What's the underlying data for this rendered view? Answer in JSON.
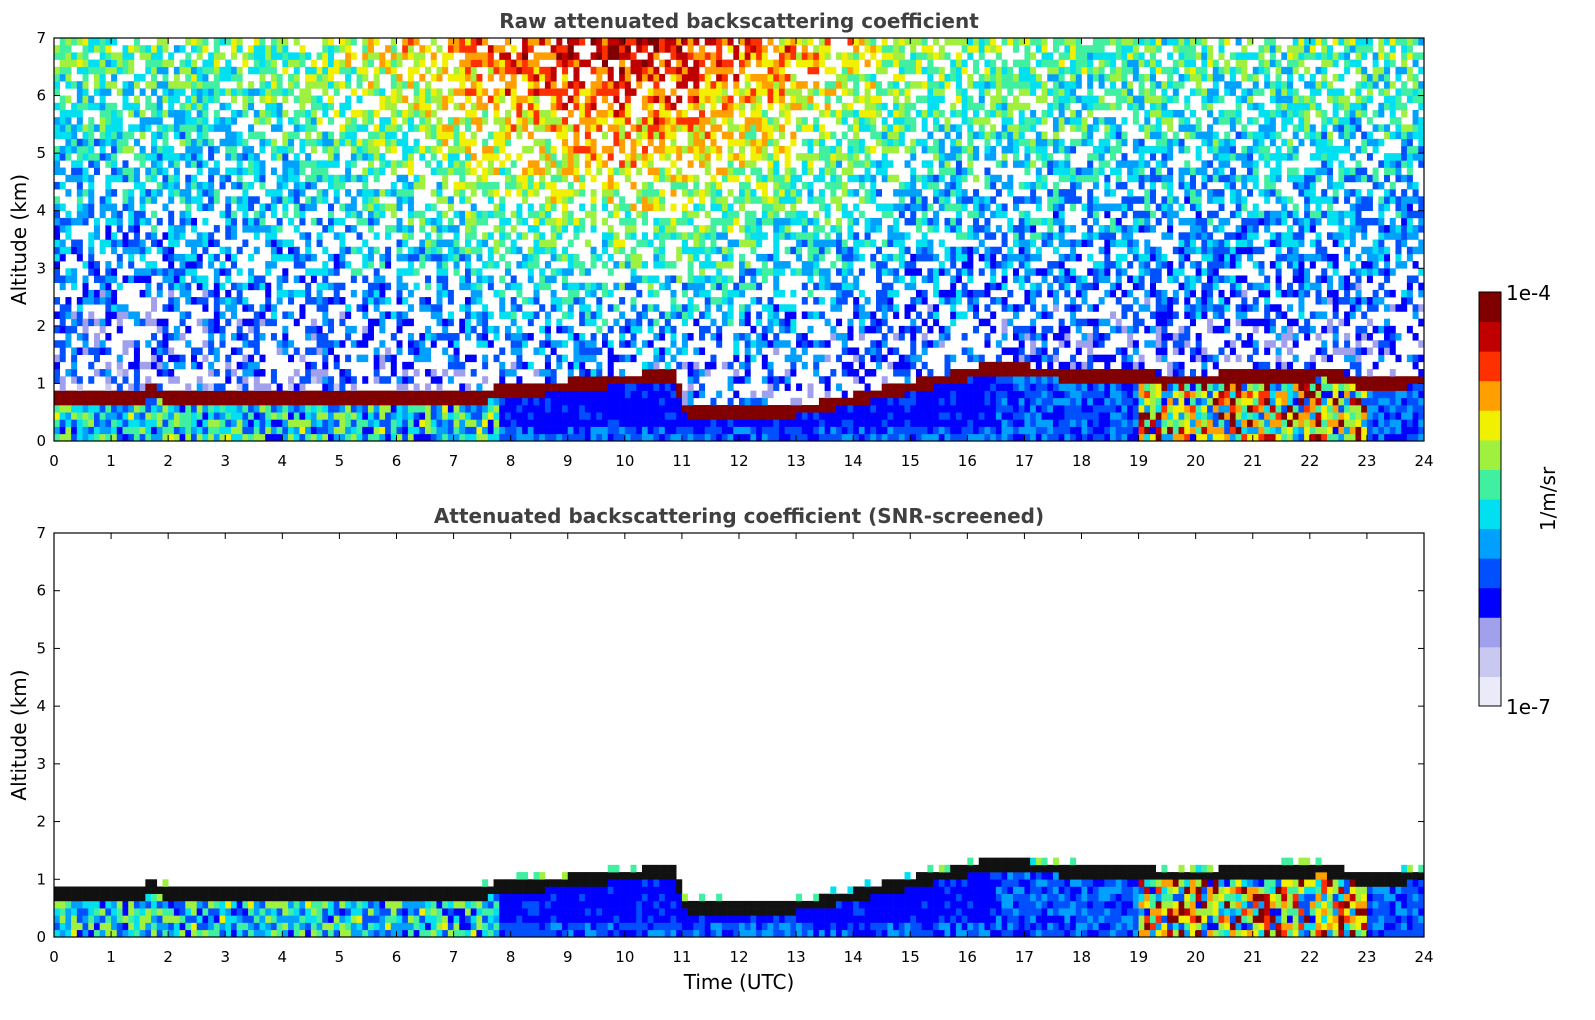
{
  "chart_data": [
    {
      "type": "heatmap",
      "title": "Raw attenuated backscattering coefficient",
      "xlabel": "",
      "ylabel": "Altitude (km)",
      "xlim": [
        0,
        24
      ],
      "ylim": [
        0,
        7
      ],
      "xticks": [
        "0",
        "1",
        "2",
        "3",
        "4",
        "5",
        "6",
        "7",
        "8",
        "9",
        "10",
        "11",
        "12",
        "13",
        "14",
        "15",
        "16",
        "17",
        "18",
        "19",
        "20",
        "21",
        "22",
        "23",
        "24"
      ],
      "yticks": [
        "0",
        "1",
        "2",
        "3",
        "4",
        "5",
        "6",
        "7"
      ],
      "cloud_base_km": [
        {
          "t": 0,
          "z": 0.7
        },
        {
          "t": 1.5,
          "z": 0.72
        },
        {
          "t": 1.7,
          "z": 0.85
        },
        {
          "t": 2,
          "z": 0.72
        },
        {
          "t": 7.5,
          "z": 0.72
        },
        {
          "t": 7.8,
          "z": 0.85
        },
        {
          "t": 8.5,
          "z": 0.88
        },
        {
          "t": 9.5,
          "z": 1.0
        },
        {
          "t": 10.9,
          "z": 1.12
        },
        {
          "t": 11.0,
          "z": 0.52
        },
        {
          "t": 12.5,
          "z": 0.45
        },
        {
          "t": 13.3,
          "z": 0.55
        },
        {
          "t": 16.5,
          "z": 1.25
        },
        {
          "t": 18,
          "z": 1.1
        },
        {
          "t": 20,
          "z": 1.05
        },
        {
          "t": 22.3,
          "z": 1.15
        },
        {
          "t": 23,
          "z": 0.95
        },
        {
          "t": 24,
          "z": 1.05
        }
      ],
      "noise": "high"
    },
    {
      "type": "heatmap",
      "title": "Attenuated backscattering coefficient (SNR-screened)",
      "xlabel": "Time (UTC)",
      "ylabel": "Altitude (km)",
      "xlim": [
        0,
        24
      ],
      "ylim": [
        0,
        7
      ],
      "xticks": [
        "0",
        "1",
        "2",
        "3",
        "4",
        "5",
        "6",
        "7",
        "8",
        "9",
        "10",
        "11",
        "12",
        "13",
        "14",
        "15",
        "16",
        "17",
        "18",
        "19",
        "20",
        "21",
        "22",
        "23",
        "24"
      ],
      "yticks": [
        "0",
        "1",
        "2",
        "3",
        "4",
        "5",
        "6",
        "7"
      ],
      "cloud_base_km": [
        {
          "t": 0,
          "z": 0.7
        },
        {
          "t": 1.5,
          "z": 0.72
        },
        {
          "t": 1.7,
          "z": 0.85
        },
        {
          "t": 2,
          "z": 0.72
        },
        {
          "t": 7.5,
          "z": 0.72
        },
        {
          "t": 7.8,
          "z": 0.85
        },
        {
          "t": 8.5,
          "z": 0.88
        },
        {
          "t": 9.5,
          "z": 1.0
        },
        {
          "t": 10.9,
          "z": 1.12
        },
        {
          "t": 11.0,
          "z": 0.52
        },
        {
          "t": 12.5,
          "z": 0.45
        },
        {
          "t": 13.3,
          "z": 0.55
        },
        {
          "t": 16.5,
          "z": 1.25
        },
        {
          "t": 18,
          "z": 1.1
        },
        {
          "t": 20,
          "z": 1.05
        },
        {
          "t": 22.3,
          "z": 1.15
        },
        {
          "t": 23,
          "z": 0.95
        },
        {
          "t": 24,
          "z": 1.05
        }
      ],
      "noise": "screened"
    }
  ],
  "colorbar": {
    "max_label": "1e-4",
    "min_label": "1e-7",
    "unit_label": "1/m/sr",
    "scale": "log",
    "colormap": [
      "#eaeaf8",
      "#c8c8f0",
      "#a0a0ec",
      "#0000ff",
      "#0050ff",
      "#00a0ff",
      "#00e0f0",
      "#40f0a0",
      "#a0f040",
      "#f0f000",
      "#ffa000",
      "#ff3000",
      "#c00000",
      "#800000"
    ]
  }
}
